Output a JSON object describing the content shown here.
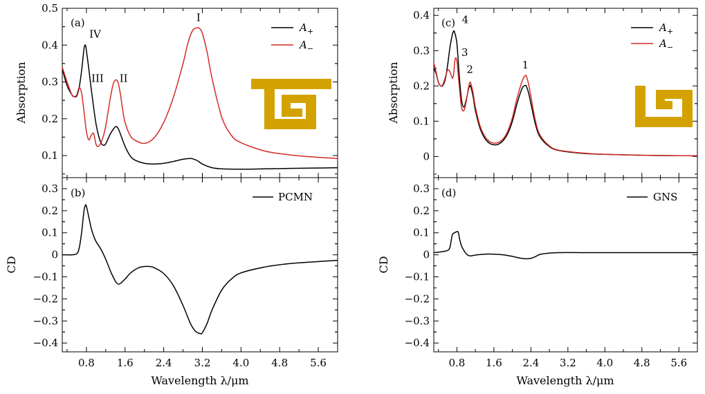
{
  "colors": {
    "a_plus": "#000000",
    "a_minus": "#d42a24",
    "cd": "#000000",
    "inset": "#d4a200"
  },
  "x_axis_label": "Wavelength λ/μm",
  "chart_data": [
    {
      "id": "a",
      "panel_label": "(a)",
      "type": "line",
      "xlabel": "Wavelength λ/μm",
      "ylabel": "Absorption",
      "xlim": [
        0.3,
        6.0
      ],
      "ylim": [
        0.04,
        0.5
      ],
      "xticks": [
        "0.8",
        "1.6",
        "2.4",
        "3.2",
        "4.0",
        "4.8",
        "5.6"
      ],
      "xtick_values": [
        0.8,
        1.6,
        2.4,
        3.2,
        4.0,
        4.8,
        5.6
      ],
      "yticks": [
        "0.1",
        "0.2",
        "0.3",
        "0.4",
        "0.5"
      ],
      "ytick_values": [
        0.1,
        0.2,
        0.3,
        0.4,
        0.5
      ],
      "legend_position": "top-right",
      "inset_icon": "rectangular-spiral-icon",
      "series": [
        {
          "name": "A+",
          "legend_main": "A",
          "legend_sub": "+",
          "color": "#000000",
          "x": [
            0.3,
            0.4,
            0.5,
            0.55,
            0.6,
            0.65,
            0.7,
            0.75,
            0.78,
            0.8,
            0.85,
            0.9,
            0.95,
            1.0,
            1.05,
            1.1,
            1.15,
            1.2,
            1.3,
            1.4,
            1.45,
            1.5,
            1.6,
            1.7,
            1.8,
            2.0,
            2.2,
            2.4,
            2.6,
            2.8,
            2.95,
            3.0,
            3.1,
            3.2,
            3.4,
            3.6,
            4.0,
            4.5,
            5.0,
            5.5,
            6.0
          ],
          "y": [
            0.335,
            0.29,
            0.265,
            0.26,
            0.262,
            0.285,
            0.33,
            0.39,
            0.4,
            0.385,
            0.335,
            0.28,
            0.23,
            0.185,
            0.155,
            0.135,
            0.128,
            0.132,
            0.16,
            0.178,
            0.175,
            0.16,
            0.125,
            0.1,
            0.088,
            0.079,
            0.077,
            0.079,
            0.084,
            0.09,
            0.092,
            0.091,
            0.086,
            0.077,
            0.067,
            0.064,
            0.063,
            0.064,
            0.065,
            0.066,
            0.067
          ]
        },
        {
          "name": "A−",
          "legend_main": "A",
          "legend_sub": "−",
          "color": "#d42a24",
          "x": [
            0.3,
            0.4,
            0.5,
            0.55,
            0.6,
            0.65,
            0.7,
            0.75,
            0.8,
            0.85,
            0.9,
            0.95,
            1.0,
            1.05,
            1.1,
            1.15,
            1.2,
            1.25,
            1.3,
            1.35,
            1.4,
            1.45,
            1.5,
            1.55,
            1.6,
            1.7,
            1.8,
            2.0,
            2.2,
            2.4,
            2.6,
            2.8,
            2.9,
            3.0,
            3.1,
            3.15,
            3.2,
            3.3,
            3.4,
            3.6,
            3.8,
            4.0,
            4.5,
            5.0,
            5.5,
            6.0
          ],
          "y": [
            0.34,
            0.3,
            0.265,
            0.26,
            0.265,
            0.285,
            0.27,
            0.22,
            0.165,
            0.143,
            0.155,
            0.16,
            0.13,
            0.125,
            0.135,
            0.152,
            0.18,
            0.22,
            0.26,
            0.292,
            0.305,
            0.3,
            0.27,
            0.225,
            0.19,
            0.156,
            0.142,
            0.133,
            0.148,
            0.19,
            0.258,
            0.35,
            0.405,
            0.44,
            0.447,
            0.444,
            0.432,
            0.38,
            0.31,
            0.205,
            0.155,
            0.135,
            0.112,
            0.102,
            0.096,
            0.092
          ]
        }
      ],
      "annotations": [
        {
          "text": "IV",
          "x": 0.98,
          "y": 0.42
        },
        {
          "text": "III",
          "x": 1.03,
          "y": 0.3
        },
        {
          "text": "II",
          "x": 1.57,
          "y": 0.3
        },
        {
          "text": "I",
          "x": 3.12,
          "y": 0.465
        }
      ]
    },
    {
      "id": "b",
      "panel_label": "(b)",
      "type": "line",
      "xlabel": "Wavelength λ/μm",
      "ylabel": "CD",
      "xlim": [
        0.3,
        6.0
      ],
      "ylim": [
        -0.44,
        0.35
      ],
      "xticks": [
        "0.8",
        "1.6",
        "2.4",
        "3.2",
        "4.0",
        "4.8",
        "5.6"
      ],
      "xtick_values": [
        0.8,
        1.6,
        2.4,
        3.2,
        4.0,
        4.8,
        5.6
      ],
      "yticks": [
        "0.3",
        "0.2",
        "0.1",
        "0",
        "−0.1",
        "−0.2",
        "−0.3",
        "−0.4"
      ],
      "ytick_values": [
        0.3,
        0.2,
        0.1,
        0,
        -0.1,
        -0.2,
        -0.3,
        -0.4
      ],
      "legend_position": "top-right",
      "series": [
        {
          "name": "PCMN",
          "legend_main": "PCMN",
          "color": "#000000",
          "x": [
            0.3,
            0.4,
            0.5,
            0.6,
            0.65,
            0.7,
            0.75,
            0.78,
            0.8,
            0.85,
            0.9,
            0.95,
            1.0,
            1.1,
            1.2,
            1.3,
            1.4,
            1.45,
            1.5,
            1.6,
            1.7,
            1.8,
            1.9,
            2.0,
            2.1,
            2.2,
            2.4,
            2.6,
            2.8,
            2.95,
            3.05,
            3.15,
            3.2,
            3.3,
            3.4,
            3.6,
            3.8,
            4.0,
            4.5,
            5.0,
            5.5,
            6.0
          ],
          "y": [
            0.0,
            0.0,
            0.0,
            0.005,
            0.03,
            0.1,
            0.2,
            0.225,
            0.22,
            0.17,
            0.12,
            0.085,
            0.06,
            0.025,
            -0.02,
            -0.075,
            -0.12,
            -0.132,
            -0.13,
            -0.11,
            -0.085,
            -0.068,
            -0.057,
            -0.053,
            -0.053,
            -0.058,
            -0.085,
            -0.14,
            -0.23,
            -0.31,
            -0.345,
            -0.357,
            -0.353,
            -0.31,
            -0.25,
            -0.16,
            -0.11,
            -0.082,
            -0.055,
            -0.04,
            -0.032,
            -0.025
          ]
        }
      ]
    },
    {
      "id": "c",
      "panel_label": "(c)",
      "type": "line",
      "xlabel": "Wavelength λ/μm",
      "ylabel": "Absorption",
      "xlim": [
        0.3,
        6.0
      ],
      "ylim": [
        -0.06,
        0.42
      ],
      "xticks": [
        "0.8",
        "1.6",
        "2.4",
        "3.2",
        "4.0",
        "4.8",
        "5.6"
      ],
      "xtick_values": [
        0.8,
        1.6,
        2.4,
        3.2,
        4.0,
        4.8,
        5.6
      ],
      "yticks": [
        "0",
        "0.1",
        "0.2",
        "0.3",
        "0.4"
      ],
      "ytick_values": [
        0,
        0.1,
        0.2,
        0.3,
        0.4
      ],
      "legend_position": "top-right",
      "inset_icon": "square-spiral-icon",
      "series": [
        {
          "name": "A+",
          "legend_main": "A",
          "legend_sub": "+",
          "color": "#000000",
          "x": [
            0.3,
            0.35,
            0.4,
            0.45,
            0.5,
            0.55,
            0.6,
            0.65,
            0.7,
            0.73,
            0.75,
            0.8,
            0.85,
            0.9,
            0.95,
            1.0,
            1.05,
            1.08,
            1.1,
            1.15,
            1.2,
            1.3,
            1.4,
            1.5,
            1.6,
            1.7,
            1.8,
            1.9,
            2.0,
            2.1,
            2.2,
            2.25,
            2.28,
            2.3,
            2.35,
            2.4,
            2.5,
            2.6,
            2.8,
            3.0,
            3.5,
            4.0,
            5.0,
            6.0
          ],
          "y": [
            0.25,
            0.235,
            0.21,
            0.2,
            0.202,
            0.22,
            0.26,
            0.31,
            0.345,
            0.355,
            0.352,
            0.32,
            0.23,
            0.16,
            0.14,
            0.16,
            0.19,
            0.2,
            0.198,
            0.17,
            0.13,
            0.08,
            0.052,
            0.038,
            0.033,
            0.035,
            0.045,
            0.065,
            0.1,
            0.15,
            0.19,
            0.2,
            0.201,
            0.2,
            0.18,
            0.15,
            0.09,
            0.055,
            0.028,
            0.017,
            0.009,
            0.006,
            0.003,
            0.002
          ]
        },
        {
          "name": "A−",
          "legend_main": "A",
          "legend_sub": "−",
          "color": "#d42a24",
          "x": [
            0.3,
            0.35,
            0.4,
            0.45,
            0.5,
            0.55,
            0.6,
            0.65,
            0.7,
            0.73,
            0.76,
            0.8,
            0.85,
            0.9,
            0.95,
            1.0,
            1.05,
            1.08,
            1.1,
            1.15,
            1.2,
            1.3,
            1.4,
            1.5,
            1.6,
            1.7,
            1.8,
            1.9,
            2.0,
            2.1,
            2.2,
            2.25,
            2.28,
            2.3,
            2.35,
            2.4,
            2.5,
            2.6,
            2.8,
            3.0,
            3.5,
            4.0,
            5.0,
            6.0
          ],
          "y": [
            0.265,
            0.24,
            0.21,
            0.2,
            0.205,
            0.225,
            0.245,
            0.24,
            0.222,
            0.235,
            0.275,
            0.27,
            0.2,
            0.14,
            0.13,
            0.155,
            0.195,
            0.21,
            0.207,
            0.18,
            0.14,
            0.087,
            0.058,
            0.043,
            0.038,
            0.04,
            0.05,
            0.072,
            0.11,
            0.165,
            0.21,
            0.225,
            0.229,
            0.228,
            0.205,
            0.17,
            0.1,
            0.06,
            0.03,
            0.018,
            0.01,
            0.006,
            0.003,
            0.002
          ]
        }
      ],
      "annotations": [
        {
          "text": "4",
          "x": 0.98,
          "y": 0.378
        },
        {
          "text": "3",
          "x": 0.97,
          "y": 0.285
        },
        {
          "text": "2",
          "x": 1.08,
          "y": 0.237
        },
        {
          "text": "1",
          "x": 2.28,
          "y": 0.25
        }
      ]
    },
    {
      "id": "d",
      "panel_label": "(d)",
      "type": "line",
      "xlabel": "Wavelength λ/μm",
      "ylabel": "CD",
      "xlim": [
        0.3,
        6.0
      ],
      "ylim": [
        -0.44,
        0.35
      ],
      "xticks": [
        "0.8",
        "1.6",
        "2.4",
        "3.2",
        "4.0",
        "4.8",
        "5.6"
      ],
      "xtick_values": [
        0.8,
        1.6,
        2.4,
        3.2,
        4.0,
        4.8,
        5.6
      ],
      "yticks": [
        "0.3",
        "0.2",
        "0.1",
        "0",
        "−0.1",
        "−0.2",
        "−0.3",
        "−0.4"
      ],
      "ytick_values": [
        0.3,
        0.2,
        0.1,
        0,
        -0.1,
        -0.2,
        -0.3,
        -0.4
      ],
      "legend_position": "top-right",
      "series": [
        {
          "name": "GNS",
          "legend_main": "GNS",
          "color": "#000000",
          "x": [
            0.3,
            0.4,
            0.5,
            0.6,
            0.65,
            0.7,
            0.75,
            0.8,
            0.83,
            0.86,
            0.9,
            0.95,
            1.0,
            1.05,
            1.1,
            1.2,
            1.4,
            1.6,
            1.8,
            2.0,
            2.1,
            2.2,
            2.3,
            2.4,
            2.5,
            2.6,
            2.8,
            3.0,
            3.5,
            4.0,
            5.0,
            6.0
          ],
          "y": [
            0.01,
            0.012,
            0.015,
            0.02,
            0.035,
            0.09,
            0.1,
            0.105,
            0.102,
            0.07,
            0.04,
            0.02,
            0.005,
            -0.003,
            -0.005,
            -0.001,
            0.003,
            0.003,
            0.0,
            -0.007,
            -0.012,
            -0.016,
            -0.018,
            -0.016,
            -0.008,
            0.002,
            0.008,
            0.01,
            0.01,
            0.01,
            0.01,
            0.01
          ]
        }
      ]
    }
  ]
}
